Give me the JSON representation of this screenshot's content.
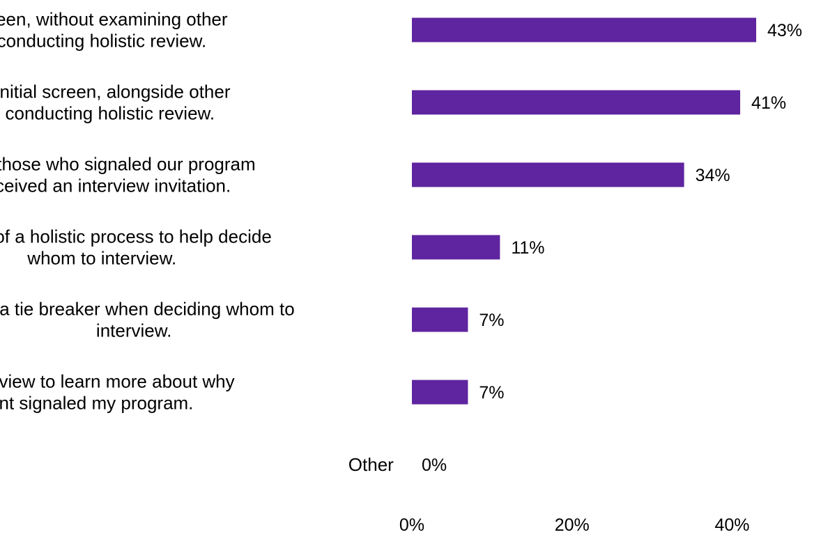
{
  "chart_data": {
    "type": "bar",
    "orientation": "horizontal",
    "title": "",
    "xlabel": "",
    "ylabel": "",
    "categories": [
      [
        "As an initial screen, without examining other",
        "data, before conducting holistic review."
      ],
      [
        "As part of an initial screen, alongside other",
        "data, before conducting holistic review."
      ],
      [
        "Only those who signaled our program",
        "received an interview invitation."
      ],
      [
        "As part of a holistic process to help decide",
        "whom to interview."
      ],
      [
        "As a tie breaker when deciding whom to",
        "interview."
      ],
      [
        "During the interview to learn more about why",
        "an applicant signaled my program."
      ],
      [
        "Other"
      ]
    ],
    "values": [
      43,
      41,
      34,
      11,
      7,
      7,
      0
    ],
    "value_labels": [
      "43%",
      "41%",
      "34%",
      "11%",
      "7%",
      "7%",
      "0%"
    ],
    "x_ticks": [
      0,
      20,
      40
    ],
    "x_tick_labels": [
      "0%",
      "20%",
      "40%"
    ],
    "xlim": [
      0,
      43
    ],
    "bar_color": "#5f249f",
    "grid": false,
    "legend": "none"
  }
}
